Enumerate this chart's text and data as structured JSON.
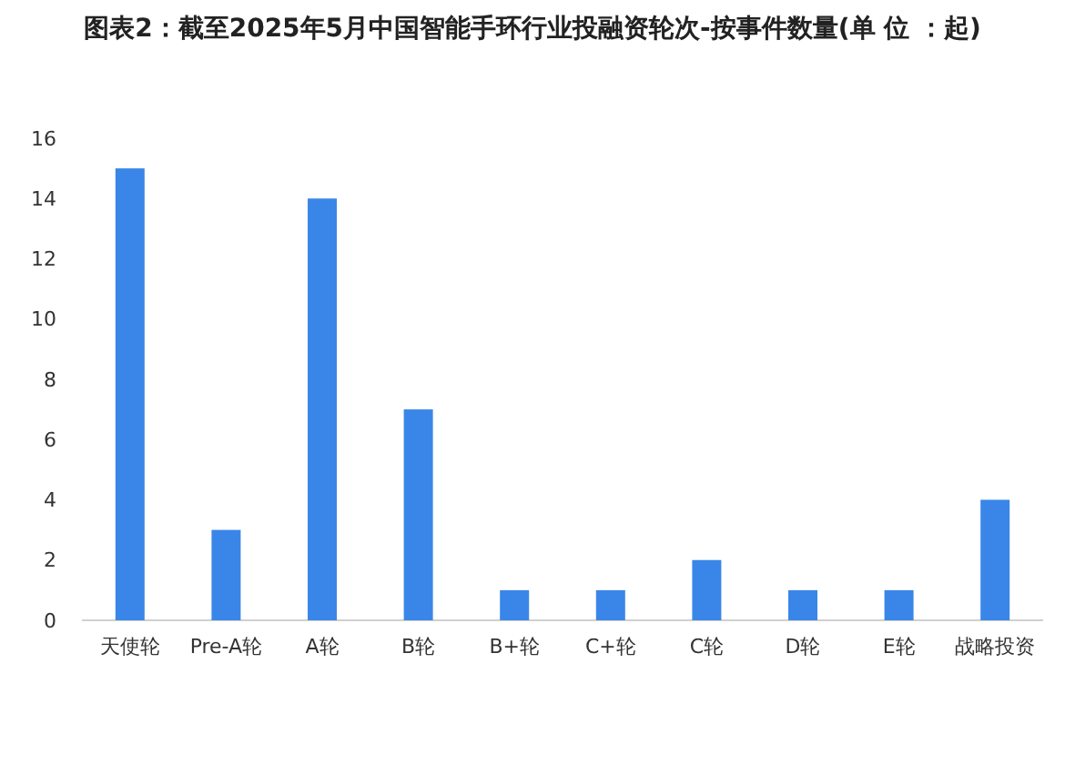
{
  "chart_data": {
    "type": "bar",
    "title": "图表2：截至2025年5月中国智能手环行业投融资轮次-按事件数量(单 位 ：起)",
    "categories": [
      "天使轮",
      "Pre-A轮",
      "A轮",
      "B轮",
      "B+轮",
      "C+轮",
      "C轮",
      "D轮",
      "E轮",
      "战略投资"
    ],
    "values": [
      15,
      3,
      14,
      7,
      1,
      1,
      2,
      1,
      1,
      4
    ],
    "color": "#3a86e8",
    "ylim": [
      0,
      16
    ],
    "yticks": [
      0,
      2,
      4,
      6,
      8,
      10,
      12,
      14,
      16
    ],
    "grid": false
  }
}
